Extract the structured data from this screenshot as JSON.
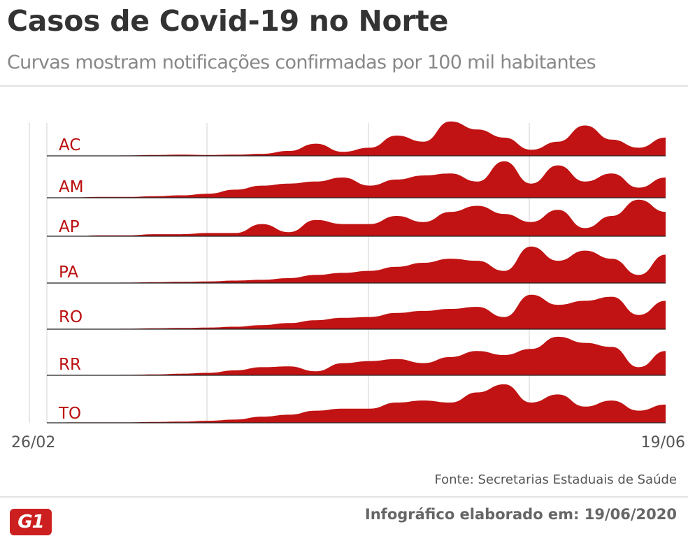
{
  "header": {
    "title": "Casos de Covid-19 no Norte",
    "subtitle": "Curvas mostram notificações confirmadas por 100 mil habitantes"
  },
  "footer": {
    "source": "Fonte: Secretarias Estaduais de Saúde",
    "credit": "Infográfico elaborado em: 19/06/2020",
    "logo": "G1"
  },
  "colors": {
    "fill": "#c11313",
    "label": "#bb0e0e",
    "gridline": "#d9d9d9",
    "baseline": "#222222"
  },
  "chart_data": {
    "type": "area",
    "title": "Casos de Covid-19 no Norte",
    "subtitle": "Curvas mostram notificações confirmadas por 100 mil habitantes",
    "x_range": [
      "26/02",
      "19/06"
    ],
    "x_tick_labels": [
      "26/02",
      "19/06"
    ],
    "grid": true,
    "value_scale": "relative (0–1, no y-axis printed)",
    "series": [
      {
        "name": "AC",
        "values": [
          0.0,
          0.0,
          0.0,
          0.01,
          0.02,
          0.03,
          0.02,
          0.03,
          0.05,
          0.12,
          0.3,
          0.1,
          0.2,
          0.5,
          0.35,
          0.85,
          0.65,
          0.45,
          0.15,
          0.35,
          0.75,
          0.4,
          0.2,
          0.45
        ]
      },
      {
        "name": "AM",
        "values": [
          0.0,
          0.01,
          0.02,
          0.02,
          0.04,
          0.06,
          0.1,
          0.2,
          0.3,
          0.35,
          0.4,
          0.5,
          0.3,
          0.45,
          0.55,
          0.6,
          0.4,
          0.9,
          0.35,
          0.8,
          0.4,
          0.6,
          0.25,
          0.5
        ]
      },
      {
        "name": "AP",
        "values": [
          0.0,
          0.0,
          0.02,
          0.02,
          0.05,
          0.05,
          0.08,
          0.08,
          0.3,
          0.1,
          0.4,
          0.3,
          0.3,
          0.5,
          0.35,
          0.6,
          0.75,
          0.55,
          0.35,
          0.65,
          0.2,
          0.5,
          0.9,
          0.6
        ]
      },
      {
        "name": "PA",
        "values": [
          0.0,
          0.0,
          0.0,
          0.01,
          0.02,
          0.03,
          0.04,
          0.06,
          0.08,
          0.12,
          0.2,
          0.25,
          0.3,
          0.4,
          0.5,
          0.6,
          0.55,
          0.3,
          0.9,
          0.55,
          0.8,
          0.6,
          0.2,
          0.7
        ]
      },
      {
        "name": "RO",
        "values": [
          0.0,
          0.0,
          0.0,
          0.01,
          0.02,
          0.03,
          0.04,
          0.06,
          0.1,
          0.15,
          0.22,
          0.28,
          0.3,
          0.4,
          0.45,
          0.5,
          0.55,
          0.3,
          0.85,
          0.6,
          0.7,
          0.8,
          0.35,
          0.7
        ]
      },
      {
        "name": "RR",
        "values": [
          0.0,
          0.0,
          0.0,
          0.01,
          0.02,
          0.04,
          0.06,
          0.12,
          0.2,
          0.22,
          0.1,
          0.3,
          0.35,
          0.4,
          0.3,
          0.45,
          0.6,
          0.5,
          0.65,
          0.95,
          0.8,
          0.7,
          0.2,
          0.6
        ]
      },
      {
        "name": "TO",
        "values": [
          0.0,
          0.01,
          0.01,
          0.01,
          0.02,
          0.03,
          0.05,
          0.08,
          0.15,
          0.2,
          0.3,
          0.35,
          0.35,
          0.5,
          0.55,
          0.5,
          0.75,
          0.95,
          0.5,
          0.7,
          0.4,
          0.55,
          0.3,
          0.45
        ]
      }
    ]
  }
}
